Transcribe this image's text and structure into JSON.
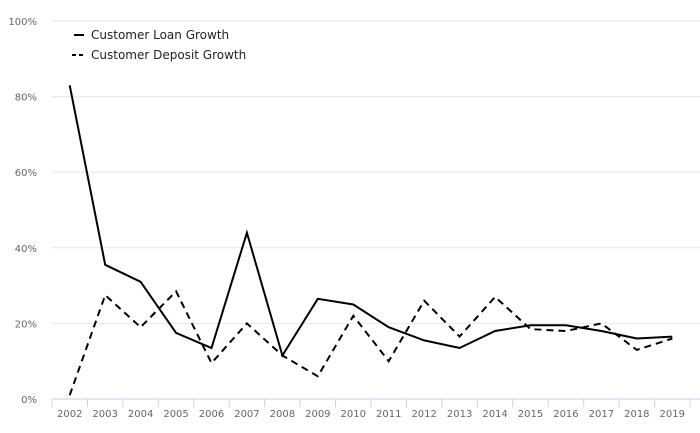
{
  "chart_data": {
    "type": "line",
    "x": [
      "2002",
      "2003",
      "2004",
      "2005",
      "2006",
      "2007",
      "2008",
      "2009",
      "2010",
      "2011",
      "2012",
      "2013",
      "2014",
      "2015",
      "2016",
      "2017",
      "2018",
      "2019"
    ],
    "yticks": [
      "0%",
      "20%",
      "40%",
      "60%",
      "80%",
      "100%"
    ],
    "ylim": [
      0,
      100
    ],
    "grid": true,
    "legend_position": "top-left",
    "series": [
      {
        "name": "Customer Loan Growth",
        "style": "solid",
        "color": "#000000",
        "values": [
          83,
          35.5,
          31,
          17.5,
          13.5,
          44,
          11.5,
          26.5,
          25,
          19,
          15.5,
          13.5,
          18,
          19.5,
          19.5,
          18,
          16,
          16.5
        ]
      },
      {
        "name": "Customer Deposit Growth",
        "style": "dashed",
        "color": "#000000",
        "values": [
          1,
          27.5,
          19,
          28.5,
          9.5,
          20,
          11.5,
          6,
          22,
          10,
          26,
          16.5,
          27,
          18.5,
          18,
          20,
          13,
          16
        ]
      }
    ]
  }
}
